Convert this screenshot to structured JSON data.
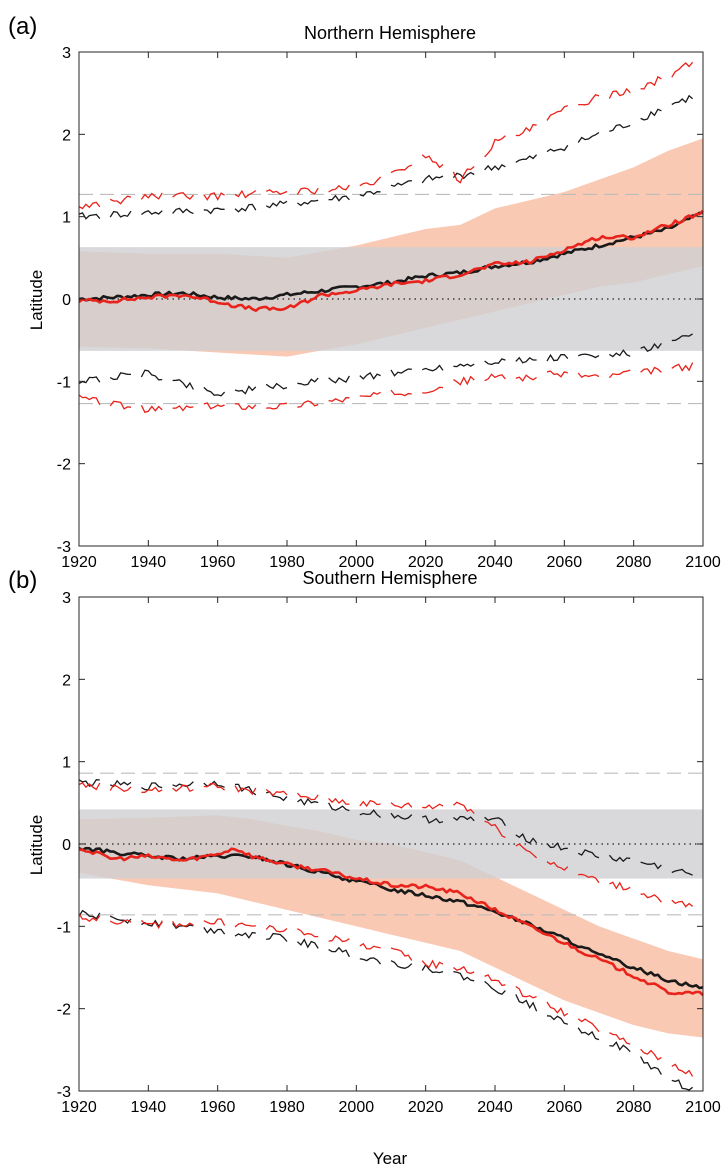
{
  "chart_data": [
    {
      "type": "line",
      "panel_tag": "(a)",
      "title": "Northern Hemisphere",
      "ylabel": "Latitude",
      "xlabel": "",
      "xlim": [
        1920,
        2100
      ],
      "ylim": [
        -3,
        3
      ],
      "xticks": [
        "1920",
        "1940",
        "1960",
        "1980",
        "2000",
        "2020",
        "2040",
        "2060",
        "2080",
        "2100"
      ],
      "yticks": [
        "-3",
        "-2",
        "-1",
        "0",
        "1",
        "2",
        "3"
      ],
      "grid": false,
      "legend": "none",
      "colors": {
        "black": "#1a1a1a",
        "red": "#e8231b",
        "gray_band": "#cfd0d2",
        "red_band": "#f7b79a"
      },
      "gray_band": [
        -0.63,
        0.63
      ],
      "reference_lines": [
        1.27,
        -1.27
      ],
      "red_band": {
        "x": [
          1920,
          1940,
          1960,
          1980,
          2000,
          2010,
          2020,
          2030,
          2040,
          2050,
          2060,
          2070,
          2080,
          2090,
          2100
        ],
        "upper": [
          0.58,
          0.55,
          0.55,
          0.5,
          0.65,
          0.75,
          0.85,
          0.9,
          1.1,
          1.2,
          1.3,
          1.45,
          1.6,
          1.8,
          1.95
        ],
        "lower": [
          -0.58,
          -0.6,
          -0.65,
          -0.7,
          -0.55,
          -0.45,
          -0.35,
          -0.25,
          -0.15,
          -0.05,
          0.05,
          0.15,
          0.2,
          0.3,
          0.4
        ]
      },
      "series": [
        {
          "color": "#1a1a1a",
          "style": "mean",
          "x": [
            1920,
            1930,
            1940,
            1950,
            1960,
            1970,
            1980,
            1990,
            2000,
            2010,
            2020,
            2030,
            2040,
            2050,
            2060,
            2070,
            2080,
            2090,
            2100
          ],
          "values": [
            0.0,
            0.02,
            0.05,
            0.07,
            0.02,
            0.0,
            0.05,
            0.1,
            0.15,
            0.2,
            0.28,
            0.32,
            0.4,
            0.45,
            0.55,
            0.65,
            0.75,
            0.85,
            1.05
          ]
        },
        {
          "color": "#e8231b",
          "style": "mean",
          "x": [
            1920,
            1930,
            1940,
            1950,
            1960,
            1965,
            1970,
            1975,
            1980,
            1990,
            2000,
            2010,
            2020,
            2030,
            2040,
            2050,
            2060,
            2070,
            2080,
            2090,
            2100
          ],
          "values": [
            -0.02,
            -0.02,
            0.02,
            0.05,
            -0.03,
            -0.08,
            -0.12,
            -0.12,
            -0.12,
            0.05,
            0.1,
            0.18,
            0.22,
            0.3,
            0.42,
            0.45,
            0.6,
            0.75,
            0.75,
            0.9,
            1.05
          ]
        },
        {
          "color": "#1a1a1a",
          "style": "upper-dashed",
          "x": [
            1920,
            1940,
            1960,
            1980,
            2000,
            2010,
            2020,
            2030,
            2040,
            2050,
            2060,
            2070,
            2080,
            2090,
            2100
          ],
          "values": [
            1.0,
            1.05,
            1.08,
            1.15,
            1.25,
            1.35,
            1.45,
            1.5,
            1.6,
            1.7,
            1.85,
            2.0,
            2.15,
            2.35,
            2.5
          ]
        },
        {
          "color": "#e8231b",
          "style": "upper-dashed",
          "x": [
            1920,
            1940,
            1960,
            1980,
            2000,
            2010,
            2020,
            2030,
            2040,
            2050,
            2060,
            2070,
            2080,
            2090,
            2100
          ],
          "values": [
            1.12,
            1.25,
            1.25,
            1.3,
            1.35,
            1.5,
            1.75,
            1.45,
            1.9,
            2.05,
            2.3,
            2.45,
            2.55,
            2.7,
            2.95
          ]
        },
        {
          "color": "#1a1a1a",
          "style": "lower-dashed",
          "x": [
            1920,
            1940,
            1960,
            1980,
            2000,
            2010,
            2020,
            2030,
            2040,
            2050,
            2060,
            2070,
            2080,
            2090,
            2100
          ],
          "values": [
            -1.0,
            -0.9,
            -1.15,
            -1.05,
            -0.95,
            -0.9,
            -0.85,
            -0.8,
            -0.75,
            -0.75,
            -0.7,
            -0.7,
            -0.65,
            -0.55,
            -0.4
          ]
        },
        {
          "color": "#e8231b",
          "style": "lower-dashed",
          "x": [
            1920,
            1940,
            1960,
            1980,
            2000,
            2010,
            2020,
            2030,
            2040,
            2050,
            2060,
            2070,
            2080,
            2090,
            2100
          ],
          "values": [
            -1.2,
            -1.35,
            -1.3,
            -1.3,
            -1.2,
            -1.15,
            -1.1,
            -1.0,
            -0.95,
            -0.95,
            -0.9,
            -0.95,
            -0.9,
            -0.85,
            -0.8
          ]
        }
      ]
    },
    {
      "type": "line",
      "panel_tag": "(b)",
      "title": "Southern Hemisphere",
      "ylabel": "Latitude",
      "xlabel": "Year",
      "xlim": [
        1920,
        2100
      ],
      "ylim": [
        -3,
        3
      ],
      "xticks": [
        "1920",
        "1940",
        "1960",
        "1980",
        "2000",
        "2020",
        "2040",
        "2060",
        "2080",
        "2100"
      ],
      "yticks": [
        "-3",
        "-2",
        "-1",
        "0",
        "1",
        "2",
        "3"
      ],
      "grid": false,
      "legend": "none",
      "colors": {
        "black": "#1a1a1a",
        "red": "#e8231b",
        "gray_band": "#cfd0d2",
        "red_band": "#f7b79a"
      },
      "gray_band": [
        -0.42,
        0.42
      ],
      "reference_lines": [
        0.86,
        -0.86
      ],
      "red_band": {
        "x": [
          1920,
          1940,
          1960,
          1970,
          1980,
          1990,
          2000,
          2010,
          2020,
          2030,
          2040,
          2050,
          2060,
          2070,
          2080,
          2090,
          2100
        ],
        "upper": [
          0.3,
          0.32,
          0.35,
          0.3,
          0.22,
          0.15,
          0.05,
          0.0,
          -0.1,
          -0.2,
          -0.4,
          -0.6,
          -0.8,
          -1.0,
          -1.15,
          -1.3,
          -1.4
        ],
        "lower": [
          -0.35,
          -0.5,
          -0.6,
          -0.7,
          -0.8,
          -0.9,
          -1.0,
          -1.1,
          -1.2,
          -1.3,
          -1.5,
          -1.7,
          -1.9,
          -2.05,
          -2.2,
          -2.3,
          -2.35
        ]
      },
      "series": [
        {
          "color": "#1a1a1a",
          "style": "mean",
          "x": [
            1920,
            1930,
            1940,
            1950,
            1960,
            1970,
            1980,
            1990,
            2000,
            2010,
            2020,
            2030,
            2040,
            2050,
            2060,
            2070,
            2080,
            2090,
            2100
          ],
          "values": [
            -0.05,
            -0.1,
            -0.15,
            -0.18,
            -0.15,
            -0.15,
            -0.25,
            -0.35,
            -0.45,
            -0.55,
            -0.62,
            -0.7,
            -0.82,
            -0.98,
            -1.15,
            -1.35,
            -1.5,
            -1.65,
            -1.75
          ]
        },
        {
          "color": "#e8231b",
          "style": "mean",
          "x": [
            1920,
            1930,
            1940,
            1950,
            1960,
            1965,
            1970,
            1980,
            1990,
            2000,
            2010,
            2020,
            2030,
            2040,
            2050,
            2060,
            2070,
            2080,
            2090,
            2100
          ],
          "values": [
            -0.05,
            -0.18,
            -0.15,
            -0.2,
            -0.12,
            -0.05,
            -0.15,
            -0.25,
            -0.32,
            -0.42,
            -0.5,
            -0.52,
            -0.6,
            -0.8,
            -1.0,
            -1.2,
            -1.4,
            -1.6,
            -1.8,
            -1.82
          ]
        },
        {
          "color": "#1a1a1a",
          "style": "upper-dashed",
          "x": [
            1920,
            1940,
            1960,
            1980,
            2000,
            2020,
            2040,
            2050,
            2060,
            2070,
            2080,
            2090,
            2100
          ],
          "values": [
            0.75,
            0.7,
            0.75,
            0.55,
            0.4,
            0.3,
            0.3,
            0.05,
            -0.05,
            -0.15,
            -0.2,
            -0.3,
            -0.4
          ]
        },
        {
          "color": "#e8231b",
          "style": "upper-dashed",
          "x": [
            1920,
            1940,
            1960,
            1980,
            2000,
            2020,
            2030,
            2040,
            2050,
            2060,
            2070,
            2080,
            2090,
            2100
          ],
          "values": [
            0.72,
            0.65,
            0.7,
            0.6,
            0.5,
            0.45,
            0.5,
            0.2,
            -0.1,
            -0.3,
            -0.45,
            -0.55,
            -0.7,
            -0.8
          ]
        },
        {
          "color": "#1a1a1a",
          "style": "lower-dashed",
          "x": [
            1920,
            1940,
            1960,
            1980,
            2000,
            2010,
            2020,
            2030,
            2040,
            2050,
            2060,
            2070,
            2080,
            2090,
            2100
          ],
          "values": [
            -0.85,
            -0.95,
            -1.05,
            -1.15,
            -1.35,
            -1.45,
            -1.5,
            -1.6,
            -1.75,
            -1.95,
            -2.15,
            -2.35,
            -2.55,
            -2.85,
            -3.05
          ]
        },
        {
          "color": "#e8231b",
          "style": "lower-dashed",
          "x": [
            1920,
            1940,
            1960,
            1980,
            2000,
            2010,
            2020,
            2030,
            2040,
            2050,
            2060,
            2070,
            2080,
            2090,
            2100
          ],
          "values": [
            -0.88,
            -0.98,
            -0.95,
            -1.05,
            -1.2,
            -1.3,
            -1.45,
            -1.5,
            -1.65,
            -1.85,
            -2.05,
            -2.25,
            -2.45,
            -2.65,
            -2.85
          ]
        }
      ]
    }
  ]
}
